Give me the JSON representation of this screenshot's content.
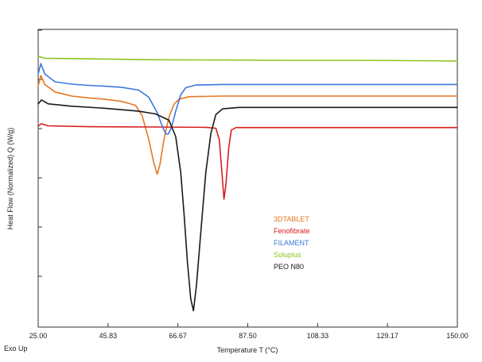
{
  "chart_data": {
    "type": "line",
    "title": "",
    "xlabel": "Temperature T (°C)",
    "ylabel": "Heat Flow (Normalized) Q (W/g)",
    "corner_note": "Exo Up",
    "xlim": [
      25.0,
      150.0
    ],
    "ylim": [
      0,
      100
    ],
    "y_tick_count": 6,
    "x_ticks": [
      "25.00",
      "45.83",
      "66.67",
      "87.50",
      "108.33",
      "129.17",
      "150.00"
    ],
    "grid": false,
    "legend_position": "center-right",
    "series": [
      {
        "name": "3DTABLET",
        "color": "#e87722",
        "points": [
          [
            25.0,
            81
          ],
          [
            25.8,
            84.5
          ],
          [
            27,
            81.5
          ],
          [
            30,
            79
          ],
          [
            35,
            77.6
          ],
          [
            40,
            77
          ],
          [
            45,
            76.5
          ],
          [
            50,
            75.8
          ],
          [
            54,
            74.5
          ],
          [
            56,
            71
          ],
          [
            58,
            63
          ],
          [
            59.5,
            55
          ],
          [
            60.5,
            51.3
          ],
          [
            61.3,
            54.5
          ],
          [
            62.5,
            63
          ],
          [
            64,
            70.5
          ],
          [
            65.5,
            74.8
          ],
          [
            67,
            76.6
          ],
          [
            70,
            77.4
          ],
          [
            80,
            77.6
          ],
          [
            100,
            77.6
          ],
          [
            150,
            77.6
          ]
        ]
      },
      {
        "name": "Fenofibrate",
        "color": "#d61e1e",
        "points": [
          [
            25.0,
            67.5
          ],
          [
            26,
            68.3
          ],
          [
            28,
            67.6
          ],
          [
            40,
            67.3
          ],
          [
            60,
            67.2
          ],
          [
            75,
            67.1
          ],
          [
            78,
            66.8
          ],
          [
            79,
            63
          ],
          [
            79.8,
            52
          ],
          [
            80.4,
            43
          ],
          [
            81,
            48
          ],
          [
            81.8,
            60
          ],
          [
            82.6,
            66.2
          ],
          [
            84,
            67
          ],
          [
            100,
            67
          ],
          [
            150,
            67
          ]
        ]
      },
      {
        "name": "FILAMENT",
        "color": "#3a78d8",
        "points": [
          [
            25.0,
            85
          ],
          [
            25.8,
            88.5
          ],
          [
            27,
            85
          ],
          [
            30,
            82.4
          ],
          [
            35,
            81.6
          ],
          [
            40,
            81.2
          ],
          [
            45,
            80.9
          ],
          [
            50,
            80.5
          ],
          [
            55,
            79.6
          ],
          [
            58,
            77.2
          ],
          [
            60.5,
            72
          ],
          [
            62,
            67.5
          ],
          [
            63,
            65
          ],
          [
            63.8,
            64.8
          ],
          [
            64.8,
            67.2
          ],
          [
            66,
            72.5
          ],
          [
            67.5,
            78
          ],
          [
            69,
            80.4
          ],
          [
            72,
            81.3
          ],
          [
            80,
            81.5
          ],
          [
            100,
            81.5
          ],
          [
            150,
            81.5
          ]
        ]
      },
      {
        "name": "Soluplus",
        "color": "#8dc420",
        "points": [
          [
            25.0,
            91
          ],
          [
            27,
            90.3
          ],
          [
            40,
            90.1
          ],
          [
            60,
            89.8
          ],
          [
            80,
            89.7
          ],
          [
            100,
            89.6
          ],
          [
            120,
            89.6
          ],
          [
            150,
            89.4
          ]
        ]
      },
      {
        "name": "PEO N80",
        "color": "#1a1a1a",
        "points": [
          [
            25.0,
            75
          ],
          [
            26,
            76.3
          ],
          [
            28,
            75
          ],
          [
            35,
            74.2
          ],
          [
            45,
            73.5
          ],
          [
            55,
            72.5
          ],
          [
            60,
            71.6
          ],
          [
            64,
            69.5
          ],
          [
            66,
            64
          ],
          [
            67.5,
            52
          ],
          [
            68.5,
            38
          ],
          [
            69.5,
            22
          ],
          [
            70.5,
            9.5
          ],
          [
            71.3,
            5.5
          ],
          [
            72.2,
            14
          ],
          [
            73.5,
            32
          ],
          [
            75,
            52
          ],
          [
            76.5,
            65
          ],
          [
            78,
            71.4
          ],
          [
            80,
            73.3
          ],
          [
            85,
            73.8
          ],
          [
            100,
            73.8
          ],
          [
            150,
            73.8
          ]
        ]
      }
    ]
  }
}
